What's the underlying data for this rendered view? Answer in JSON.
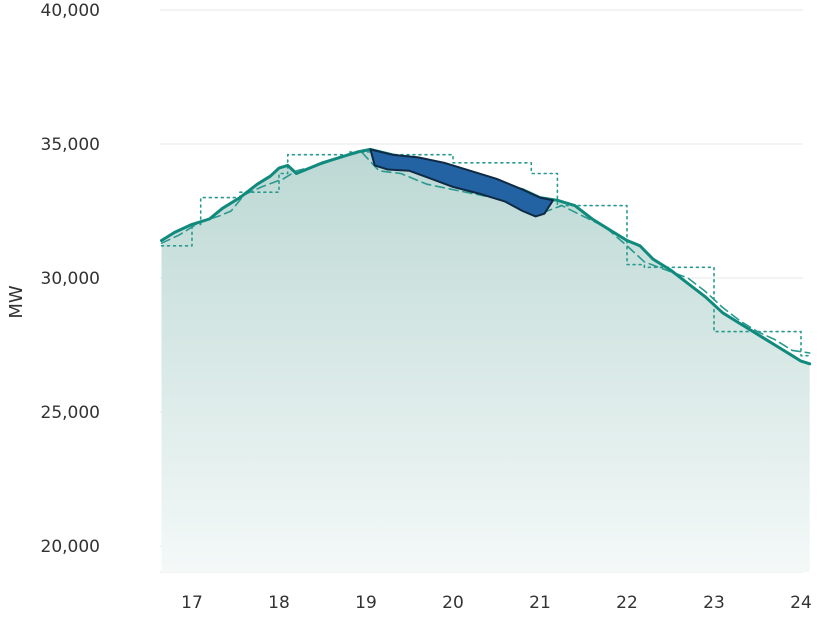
{
  "chart_data": {
    "type": "line",
    "title": "",
    "xlabel": "",
    "ylabel": "MW",
    "xlim": [
      16.65,
      24.1
    ],
    "ylim": [
      19000,
      41000
    ],
    "x_ticks": [
      17,
      18,
      19,
      20,
      21,
      22,
      23,
      24
    ],
    "y_ticks": [
      20000,
      25000,
      30000,
      35000,
      40000
    ],
    "y_tick_labels": [
      "20,000",
      "25,000",
      "30,000",
      "35,000",
      "40,000"
    ],
    "grid": true,
    "legend": "none",
    "colors": {
      "actual": "#108a7d",
      "forecast": "#2a9a8f",
      "highlight_fill": "#2363a3",
      "highlight_stroke": "#0e2a45",
      "area_top": "#bcd8d4",
      "area_bottom": "#f4f9f8"
    },
    "series": [
      {
        "style": "solid",
        "points": [
          [
            16.65,
            31400
          ],
          [
            16.8,
            31700
          ],
          [
            17.0,
            32000
          ],
          [
            17.2,
            32200
          ],
          [
            17.35,
            32600
          ],
          [
            17.55,
            33000
          ],
          [
            17.75,
            33500
          ],
          [
            17.9,
            33800
          ],
          [
            18.0,
            34100
          ],
          [
            18.1,
            34200
          ],
          [
            18.2,
            33900
          ],
          [
            18.35,
            34100
          ],
          [
            18.5,
            34300
          ],
          [
            18.7,
            34500
          ],
          [
            18.9,
            34700
          ],
          [
            19.05,
            34800
          ],
          [
            19.3,
            34600
          ],
          [
            19.6,
            34400
          ],
          [
            19.9,
            34100
          ],
          [
            20.2,
            33800
          ],
          [
            20.5,
            33500
          ],
          [
            20.8,
            33300
          ],
          [
            21.0,
            33000
          ],
          [
            21.2,
            32900
          ],
          [
            21.4,
            32700
          ],
          [
            21.6,
            32200
          ],
          [
            21.8,
            31800
          ],
          [
            22.0,
            31400
          ],
          [
            22.15,
            31200
          ],
          [
            22.3,
            30700
          ],
          [
            22.5,
            30300
          ],
          [
            22.7,
            29800
          ],
          [
            22.9,
            29300
          ],
          [
            23.1,
            28700
          ],
          [
            23.3,
            28300
          ],
          [
            23.5,
            27900
          ],
          [
            23.7,
            27500
          ],
          [
            23.9,
            27100
          ],
          [
            24.0,
            26900
          ],
          [
            24.1,
            26800
          ]
        ]
      },
      {
        "style": "dashed",
        "points": [
          [
            16.65,
            31300
          ],
          [
            16.85,
            31600
          ],
          [
            17.1,
            32100
          ],
          [
            17.3,
            32300
          ],
          [
            17.45,
            32500
          ],
          [
            17.6,
            33100
          ],
          [
            17.8,
            33400
          ],
          [
            18.05,
            33700
          ],
          [
            18.2,
            34000
          ],
          [
            18.45,
            34200
          ],
          [
            18.7,
            34500
          ],
          [
            18.95,
            34700
          ],
          [
            19.15,
            34000
          ],
          [
            19.4,
            33900
          ],
          [
            19.7,
            33500
          ],
          [
            20.0,
            33300
          ],
          [
            20.3,
            33100
          ],
          [
            20.6,
            32900
          ],
          [
            20.85,
            32500
          ],
          [
            21.0,
            32400
          ],
          [
            21.25,
            32700
          ],
          [
            21.5,
            32300
          ],
          [
            21.75,
            31900
          ],
          [
            22.0,
            31200
          ],
          [
            22.2,
            30600
          ],
          [
            22.45,
            30300
          ],
          [
            22.7,
            30000
          ],
          [
            22.9,
            29500
          ],
          [
            23.1,
            28900
          ],
          [
            23.3,
            28400
          ],
          [
            23.5,
            28000
          ],
          [
            23.7,
            27700
          ],
          [
            23.9,
            27300
          ],
          [
            24.1,
            27200
          ]
        ]
      },
      {
        "style": "dotted",
        "points": [
          [
            16.65,
            31200
          ],
          [
            17.0,
            31200
          ],
          [
            17.0,
            32000
          ],
          [
            17.1,
            32000
          ],
          [
            17.1,
            33000
          ],
          [
            17.55,
            33000
          ],
          [
            17.55,
            33200
          ],
          [
            18.0,
            33200
          ],
          [
            18.0,
            33900
          ],
          [
            18.1,
            33900
          ],
          [
            18.1,
            34600
          ],
          [
            18.8,
            34600
          ],
          [
            18.8,
            34700
          ],
          [
            19.1,
            34700
          ],
          [
            19.1,
            34600
          ],
          [
            20.0,
            34600
          ],
          [
            20.0,
            34300
          ],
          [
            20.9,
            34300
          ],
          [
            20.9,
            33900
          ],
          [
            21.2,
            33900
          ],
          [
            21.2,
            32700
          ],
          [
            22.0,
            32700
          ],
          [
            22.0,
            30500
          ],
          [
            22.2,
            30500
          ],
          [
            22.2,
            30400
          ],
          [
            23.0,
            30400
          ],
          [
            23.0,
            28000
          ],
          [
            23.25,
            28000
          ],
          [
            23.25,
            28000
          ],
          [
            24.0,
            28000
          ],
          [
            24.0,
            27100
          ],
          [
            24.1,
            27100
          ]
        ]
      }
    ],
    "highlight_band": {
      "upper": [
        [
          19.05,
          34800
        ],
        [
          19.3,
          34600
        ],
        [
          19.6,
          34500
        ],
        [
          19.9,
          34300
        ],
        [
          20.2,
          34000
        ],
        [
          20.5,
          33700
        ],
        [
          20.8,
          33300
        ],
        [
          21.0,
          33000
        ],
        [
          21.15,
          32900
        ]
      ],
      "lower": [
        [
          19.05,
          34800
        ],
        [
          19.1,
          34200
        ],
        [
          19.25,
          34050
        ],
        [
          19.5,
          34000
        ],
        [
          19.75,
          33700
        ],
        [
          20.0,
          33400
        ],
        [
          20.3,
          33150
        ],
        [
          20.6,
          32850
        ],
        [
          20.8,
          32500
        ],
        [
          20.95,
          32300
        ],
        [
          21.05,
          32400
        ],
        [
          21.15,
          32900
        ]
      ]
    }
  }
}
